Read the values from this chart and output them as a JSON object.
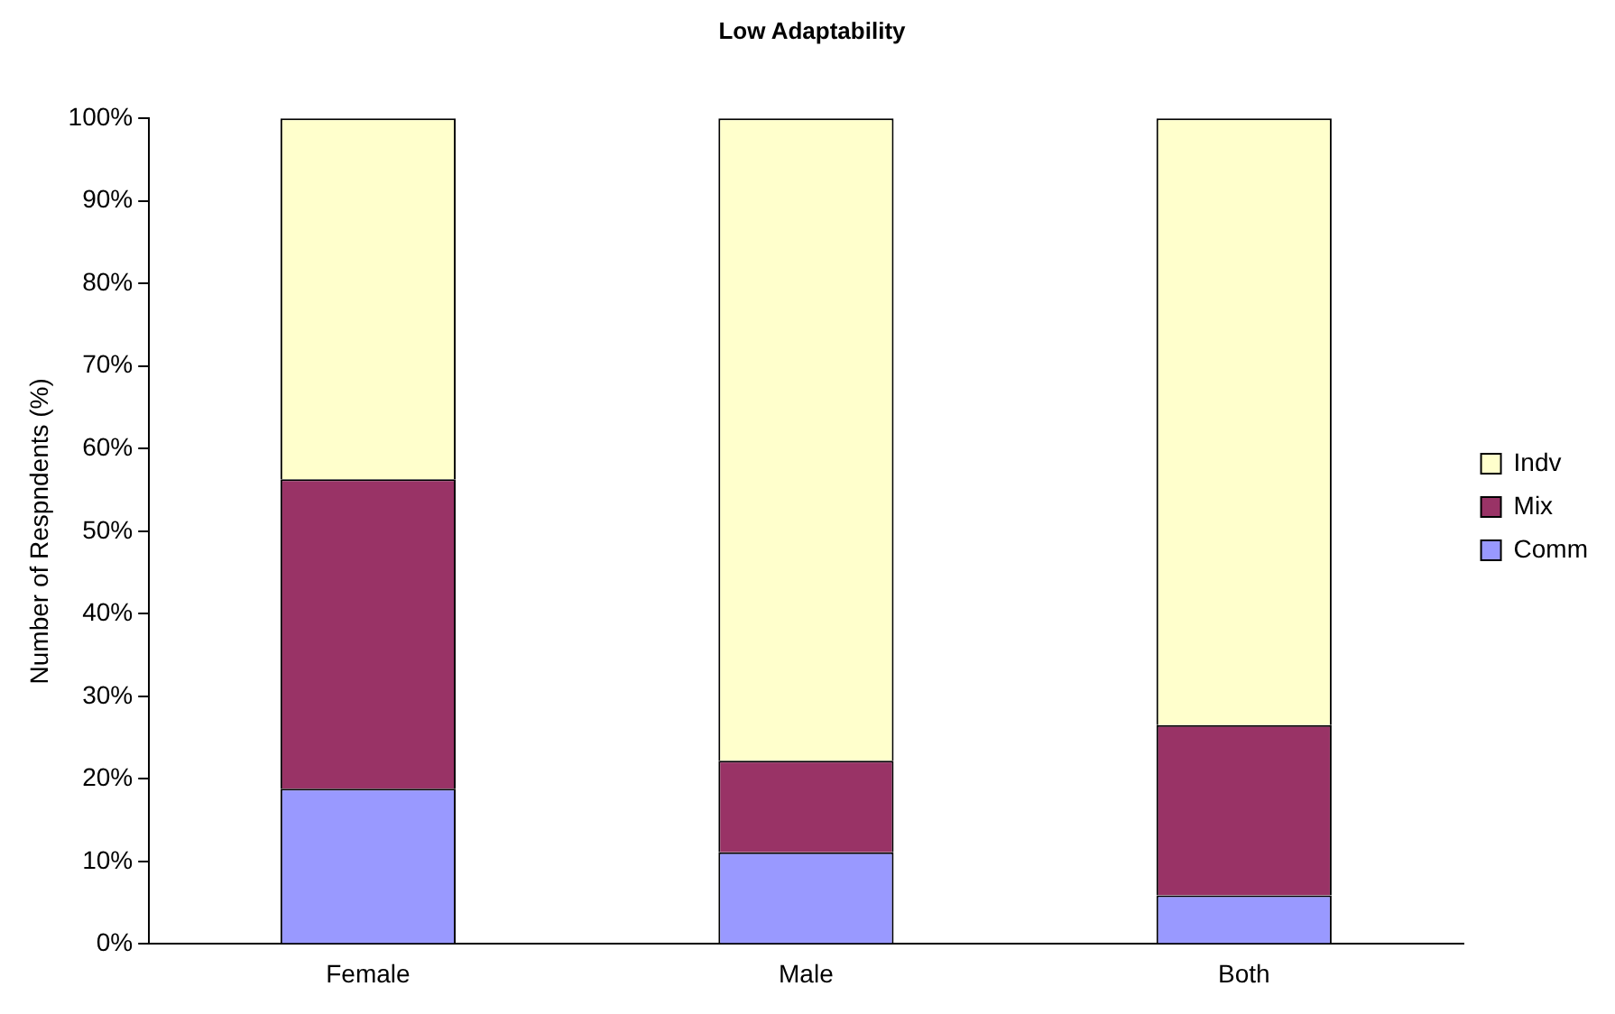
{
  "chart_data": {
    "type": "bar",
    "title": "Low Adaptability",
    "ylabel": "Number of Respndents (%)",
    "categories": [
      "Female",
      "Male",
      "Both"
    ],
    "stacked": true,
    "ylim": [
      0,
      100
    ],
    "yticks": [
      {
        "value": 0,
        "label": "0%"
      },
      {
        "value": 10,
        "label": "10%"
      },
      {
        "value": 20,
        "label": "20%"
      },
      {
        "value": 30,
        "label": "30%"
      },
      {
        "value": 40,
        "label": "40%"
      },
      {
        "value": 50,
        "label": "50%"
      },
      {
        "value": 60,
        "label": "60%"
      },
      {
        "value": 70,
        "label": "70%"
      },
      {
        "value": 80,
        "label": "80%"
      },
      {
        "value": 90,
        "label": "90%"
      },
      {
        "value": 100,
        "label": "100%"
      }
    ],
    "grid": false,
    "legend": "right",
    "series": [
      {
        "name": "Comm",
        "color": "#9999ff",
        "values": [
          18.8,
          11.1,
          5.9
        ]
      },
      {
        "name": "Mix",
        "color": "#993366",
        "values": [
          37.5,
          11.1,
          20.6
        ]
      },
      {
        "name": "Indv",
        "color": "#ffffcc",
        "values": [
          43.7,
          77.8,
          73.5
        ]
      }
    ]
  }
}
